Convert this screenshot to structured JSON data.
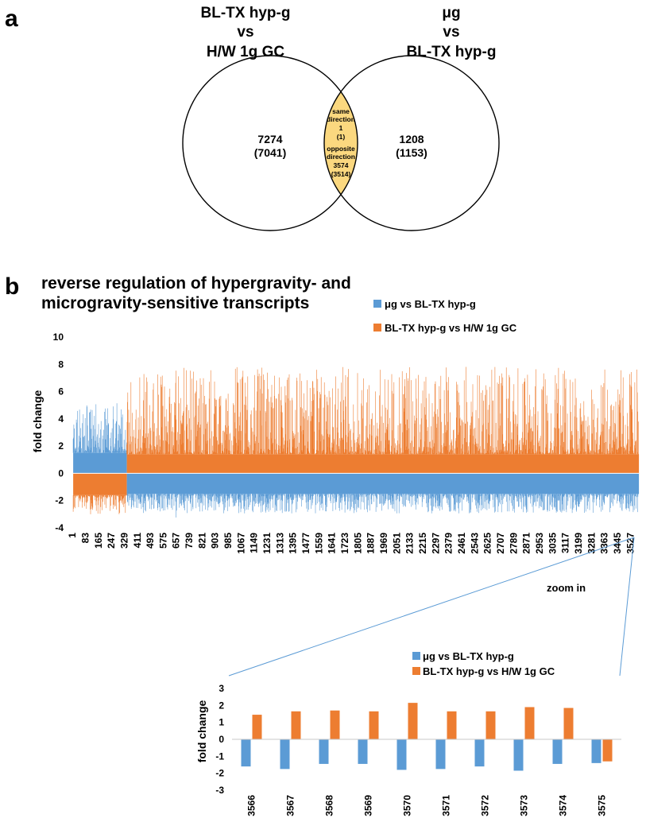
{
  "panel_a": {
    "letter": "a",
    "left_set_title": [
      "BL-TX hyp-g",
      "vs",
      "H/W 1g GC"
    ],
    "right_set_title": [
      "μg",
      "vs",
      "BL-TX hyp-g"
    ],
    "left_only": {
      "count": "7274",
      "count_paren": "(7041)"
    },
    "right_only": {
      "count": "1208",
      "count_paren": "(1153)"
    },
    "overlap": {
      "lines": [
        "same",
        "direction",
        "1",
        "(1)",
        "opposite",
        "direction",
        "3574",
        "(3514)"
      ],
      "fill_color": "#fbd87f"
    }
  },
  "panel_b": {
    "letter": "b",
    "colors": {
      "ug_vs_bltx": "#5b9bd5",
      "bltx_vs_hw": "#ed7d31"
    },
    "chart_data": [
      {
        "type": "bar",
        "title": [
          "reverse regulation of hypergravity- and",
          "microgravity-sensitive transcripts"
        ],
        "ylabel": "fold change",
        "xlabel": "",
        "ylim": [
          -4,
          10
        ],
        "yticks": [
          -4,
          -2,
          0,
          2,
          4,
          6,
          8,
          10
        ],
        "x_tick_labels": [
          "1",
          "83",
          "165",
          "247",
          "329",
          "411",
          "493",
          "575",
          "657",
          "739",
          "821",
          "903",
          "985",
          "1067",
          "1149",
          "1231",
          "1313",
          "1395",
          "1477",
          "1559",
          "1641",
          "1723",
          "1805",
          "1887",
          "1969",
          "2051",
          "2133",
          "2215",
          "2297",
          "2379",
          "2461",
          "2543",
          "2625",
          "2707",
          "2789",
          "2871",
          "2953",
          "3035",
          "3117",
          "3199",
          "3281",
          "3363",
          "3445",
          "3527"
        ],
        "n_transcripts": 3575,
        "legend": [
          "μg vs BL-TX hyp-g",
          "BL-TX hyp-g vs H/W 1g GC"
        ],
        "legend_position": "top-right",
        "segments": [
          {
            "from": 1,
            "to": 339,
            "series_up": "μg vs BL-TX hyp-g",
            "series_down": "BL-TX hyp-g vs H/W 1g GC",
            "typical_up": 1.5,
            "typical_down": -1.6,
            "max_up": 5.2,
            "min_down": -3.4
          },
          {
            "from": 340,
            "to": 3575,
            "series_up": "BL-TX hyp-g vs H/W 1g GC",
            "series_down": "μg vs BL-TX hyp-g",
            "typical_up": 1.4,
            "typical_down": -1.5,
            "max_up": 7.9,
            "min_down": -3.3
          }
        ],
        "grid": false
      },
      {
        "type": "bar",
        "title": "",
        "zoom_label": "zoom in",
        "ylabel": "fold change",
        "ylim": [
          -3,
          3
        ],
        "yticks": [
          -3,
          -2,
          -1,
          0,
          1,
          2,
          3
        ],
        "categories": [
          "3566",
          "3567",
          "3568",
          "3569",
          "3570",
          "3571",
          "3572",
          "3573",
          "3574",
          "3575"
        ],
        "series": [
          {
            "name": "μg vs BL-TX hyp-g",
            "values": [
              -1.6,
              -1.75,
              -1.45,
              -1.45,
              -1.8,
              -1.75,
              -1.6,
              -1.85,
              -1.45,
              -1.4
            ]
          },
          {
            "name": "BL-TX hyp-g vs H/W 1g GC",
            "values": [
              1.45,
              1.65,
              1.7,
              1.65,
              2.15,
              1.65,
              1.65,
              1.9,
              1.85,
              -1.3
            ]
          }
        ],
        "legend_position": "top-right",
        "grid": false
      }
    ]
  }
}
